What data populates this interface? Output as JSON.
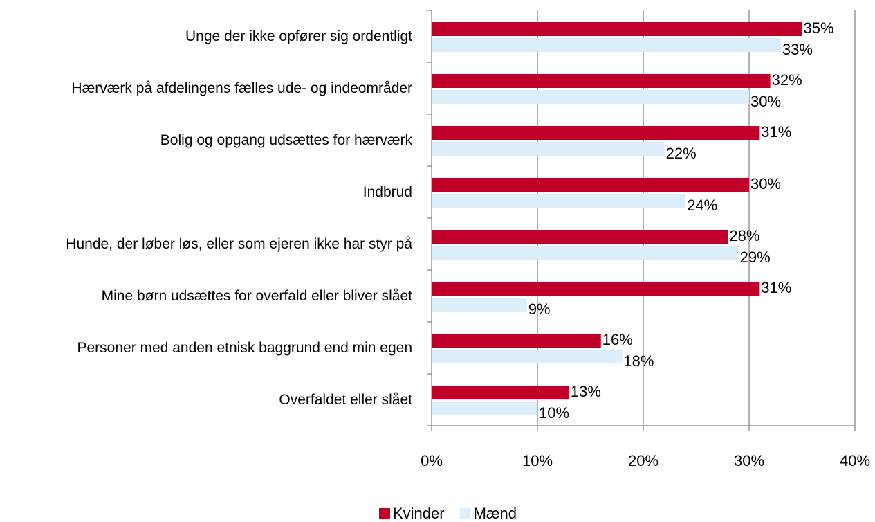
{
  "chart_data": {
    "type": "barh",
    "categories": [
      "Unge der ikke opfører sig ordentligt",
      "Hærværk på afdelingens fælles ude- og indeområder",
      "Bolig og opgang udsættes for hærværk",
      "Indbrud",
      "Hunde, der løber løs, eller som ejeren ikke har styr på",
      "Mine børn udsættes for overfald eller bliver slået",
      "Personer med anden etnisk baggrund end min egen",
      "Overfaldet eller slået"
    ],
    "series": [
      {
        "name": "Kvinder",
        "color": "#c00029",
        "values": [
          35,
          32,
          31,
          30,
          28,
          31,
          16,
          13
        ],
        "value_labels": [
          "35%",
          "32%",
          "31%",
          "30%",
          "28%",
          "31%",
          "16%",
          "13%"
        ]
      },
      {
        "name": "Mænd",
        "color": "#dbeef9",
        "values": [
          33,
          30,
          22,
          24,
          29,
          9,
          18,
          10
        ],
        "value_labels": [
          "33%",
          "30%",
          "22%",
          "24%",
          "29%",
          "9%",
          "18%",
          "10%"
        ]
      }
    ],
    "xlim": [
      0,
      40
    ],
    "xticks": [
      {
        "value": 0,
        "label": "0%"
      },
      {
        "value": 10,
        "label": "10%"
      },
      {
        "value": 20,
        "label": "20%"
      },
      {
        "value": 30,
        "label": "30%"
      },
      {
        "value": 40,
        "label": "40%"
      }
    ],
    "grid": true,
    "legend": "bottom"
  }
}
